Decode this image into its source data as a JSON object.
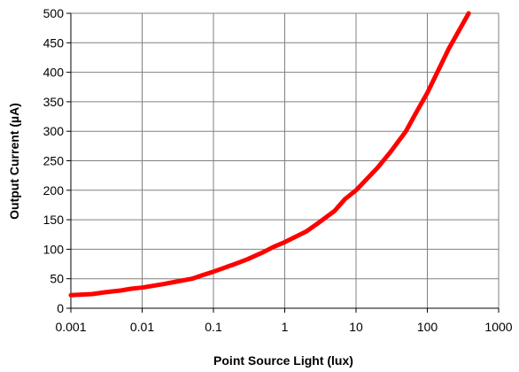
{
  "chart_data": {
    "type": "line",
    "title": "",
    "xlabel": "Point Source Light (lux)",
    "ylabel": "Output Current (µA)",
    "xscale": "log",
    "xlim": [
      0.001,
      1000
    ],
    "ylim": [
      0,
      500
    ],
    "x_ticks": [
      0.001,
      0.01,
      0.1,
      1,
      10,
      100,
      1000
    ],
    "x_tick_labels": [
      "0.001",
      "0.01",
      "0.1",
      "1",
      "10",
      "100",
      "1000"
    ],
    "y_ticks": [
      0,
      50,
      100,
      150,
      200,
      250,
      300,
      350,
      400,
      450,
      500
    ],
    "y_tick_labels": [
      "0",
      "50",
      "100",
      "150",
      "200",
      "250",
      "300",
      "350",
      "400",
      "450",
      "500"
    ],
    "grid": true,
    "series": [
      {
        "color": "#ff0000",
        "points": [
          [
            0.001,
            22
          ],
          [
            0.002,
            24
          ],
          [
            0.003,
            27
          ],
          [
            0.005,
            30
          ],
          [
            0.007,
            33
          ],
          [
            0.01,
            35
          ],
          [
            0.02,
            41
          ],
          [
            0.03,
            45
          ],
          [
            0.05,
            50
          ],
          [
            0.07,
            56
          ],
          [
            0.1,
            62
          ],
          [
            0.2,
            75
          ],
          [
            0.3,
            83
          ],
          [
            0.5,
            95
          ],
          [
            0.7,
            104
          ],
          [
            1,
            112
          ],
          [
            2,
            130
          ],
          [
            3,
            145
          ],
          [
            5,
            165
          ],
          [
            7,
            185
          ],
          [
            10,
            200
          ],
          [
            20,
            238
          ],
          [
            30,
            264
          ],
          [
            50,
            300
          ],
          [
            70,
            332
          ],
          [
            100,
            365
          ],
          [
            200,
            440
          ],
          [
            380,
            500
          ]
        ]
      }
    ]
  }
}
